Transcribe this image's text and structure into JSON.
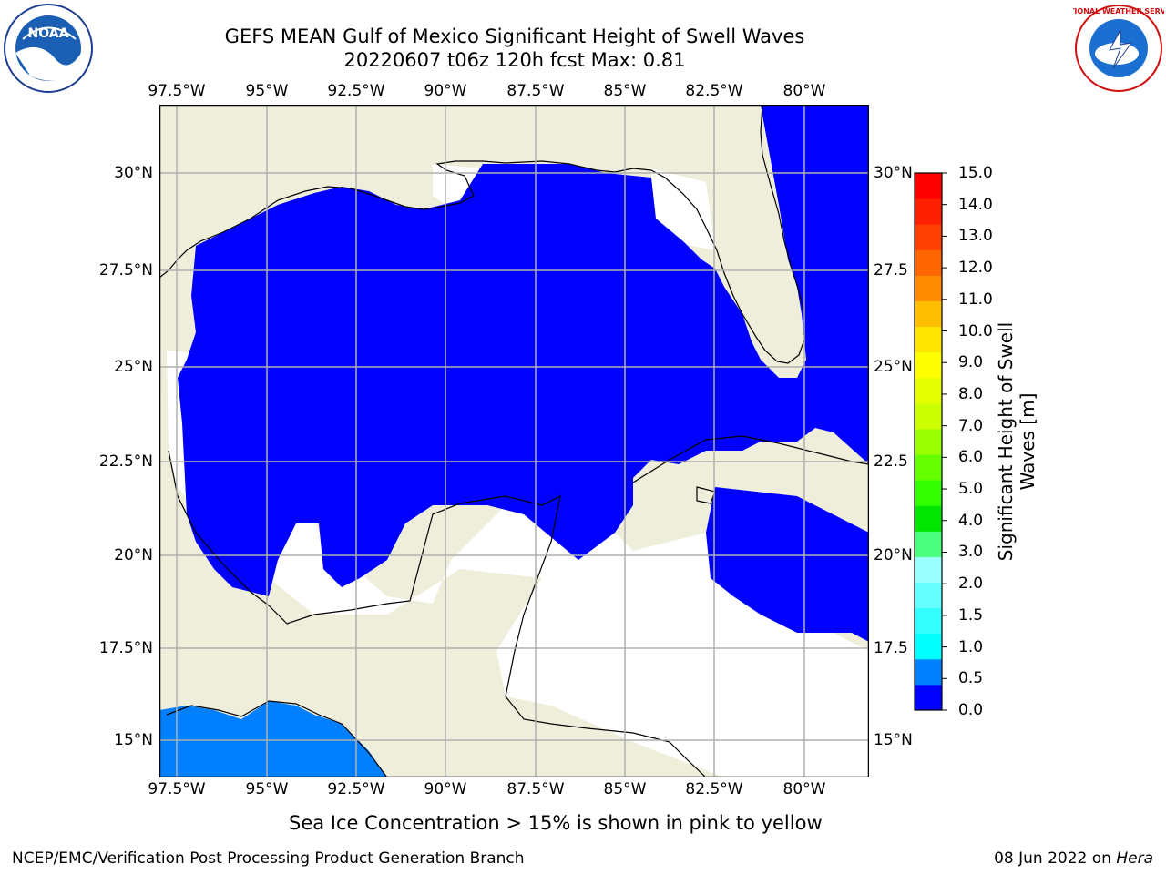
{
  "header": {
    "title_line1": "GEFS MEAN Gulf of Mexico Significant Height of Swell Waves",
    "title_line2": "20220607 t06z 120h fcst   Max: 0.81"
  },
  "map": {
    "lon_labels": [
      "97.5°W",
      "95°W",
      "92.5°W",
      "90°W",
      "87.5°W",
      "85°W",
      "82.5°W",
      "80°W"
    ],
    "lat_labels_left": [
      "30°N",
      "27.5°N",
      "25°N",
      "22.5°N",
      "20°N",
      "17.5°N",
      "15°N"
    ],
    "lat_labels_right": [
      "30°N",
      "27.5",
      "25°N",
      "22.5",
      "20°N",
      "17.5",
      "15°N"
    ],
    "colors": {
      "land": "#efeedb",
      "ocean_low": "#0000ff",
      "ocean_band2": "#0080ff",
      "grid": "#b0b0b0"
    }
  },
  "colorbar": {
    "title": "Significant Height of Swell Waves [m]",
    "tick_labels": [
      "0.0",
      "0.5",
      "1.0",
      "1.5",
      "2.0",
      "3.0",
      "4.0",
      "5.0",
      "6.0",
      "7.0",
      "8.0",
      "9.0",
      "10.0",
      "11.0",
      "12.0",
      "13.0",
      "14.0",
      "15.0"
    ],
    "colors": [
      "#0000ff",
      "#0080ff",
      "#00ffff",
      "#33ffff",
      "#66ffff",
      "#99ffff",
      "#4dff80",
      "#00e600",
      "#33ff00",
      "#66ff00",
      "#99ff00",
      "#ccff00",
      "#e6ff00",
      "#ffff00",
      "#ffe600",
      "#ffbf00",
      "#ff8c00",
      "#ff6600",
      "#ff4000",
      "#ff2000",
      "#ff0000"
    ]
  },
  "footer": {
    "note": "Sea Ice Concentration > 15% is shown in pink to yellow",
    "left": "NCEP/EMC/Verification Post Processing Product Generation Branch",
    "right_date": "08 Jun 2022 on ",
    "right_host": "Hera"
  },
  "logos": {
    "noaa_text": "NOAA",
    "nws_text": "NATIONAL WEATHER SERVICE"
  }
}
